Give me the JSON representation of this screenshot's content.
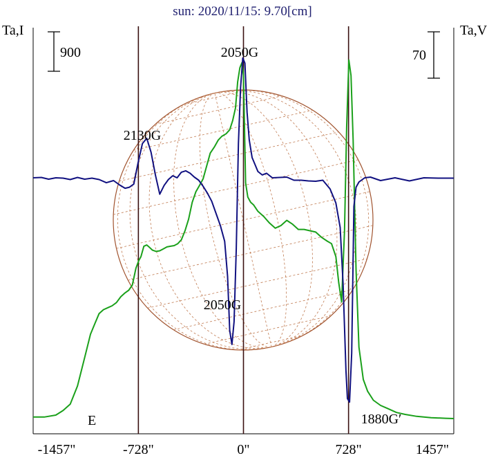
{
  "chart_data": {
    "type": "line",
    "title": "sun: 2020/11/15: 9.70[cm]",
    "ylabel_left": "Ta,I",
    "ylabel_right": "Ta,V",
    "scale_left": "900",
    "scale_right": "70",
    "x_ticks": [
      "-1457\"",
      "-728\"",
      "0\"",
      "728\"",
      "1457\""
    ],
    "x_tick_values": [
      -1457,
      -728,
      0,
      728,
      1457
    ],
    "xlim": [
      -1457,
      1457
    ],
    "vertical_lines": [
      -728,
      0,
      728
    ],
    "east_label": "E",
    "annotations": [
      {
        "text": "2130G",
        "x": -522,
        "y_series": "I"
      },
      {
        "text": "2050G",
        "x": -10,
        "y_series": "I"
      },
      {
        "text": "2050G",
        "x": -107,
        "y_series": "V"
      },
      {
        "text": "1880G′",
        "x": 728,
        "y_series": "V"
      }
    ],
    "series": [
      {
        "color": "#1aa01a",
        "x": [
          -1457,
          -1380,
          -1300,
          -1250,
          -1200,
          -1150,
          -1100,
          -1060,
          -1030,
          -1000,
          -970,
          -940,
          -910,
          -880,
          -850,
          -820,
          -795,
          -770,
          -745,
          -725,
          -710,
          -690,
          -670,
          -650,
          -630,
          -605,
          -580,
          -555,
          -530,
          -505,
          -480,
          -455,
          -430,
          -405,
          -380,
          -355,
          -330,
          -305,
          -280,
          -255,
          -230,
          -200,
          -175,
          -150,
          -120,
          -95,
          -75,
          -55,
          -40,
          -25,
          -10,
          0,
          15,
          30,
          50,
          70,
          100,
          140,
          180,
          220,
          260,
          300,
          340,
          380,
          420,
          460,
          500,
          540,
          580,
          610,
          640,
          660,
          680,
          700,
          715,
          730,
          745,
          760,
          780,
          800,
          830,
          860,
          900,
          950,
          1000,
          1060,
          1120,
          1200,
          1300,
          1400,
          1457
        ],
        "y": [
          60,
          60,
          75,
          110,
          160,
          300,
          520,
          700,
          780,
          860,
          890,
          905,
          920,
          945,
          990,
          1020,
          1040,
          1080,
          1210,
          1270,
          1300,
          1380,
          1390,
          1370,
          1350,
          1340,
          1345,
          1360,
          1375,
          1380,
          1385,
          1400,
          1430,
          1500,
          1590,
          1720,
          1800,
          1850,
          1900,
          2000,
          2100,
          2150,
          2200,
          2230,
          2250,
          2280,
          2350,
          2450,
          2650,
          2760,
          2800,
          2700,
          1870,
          1760,
          1720,
          1700,
          1650,
          1610,
          1560,
          1520,
          1540,
          1580,
          1550,
          1510,
          1510,
          1500,
          1490,
          1450,
          1420,
          1400,
          1300,
          1100,
          950,
          1500,
          2300,
          2820,
          2700,
          2200,
          1200,
          600,
          350,
          260,
          190,
          150,
          125,
          95,
          80,
          65,
          55,
          50,
          48
        ]
      },
      {
        "color": "#101080",
        "x": [
          -1457,
          -1400,
          -1350,
          -1300,
          -1250,
          -1200,
          -1150,
          -1100,
          -1050,
          -1000,
          -950,
          -900,
          -860,
          -820,
          -790,
          -760,
          -730,
          -700,
          -670,
          -640,
          -610,
          -580,
          -550,
          -520,
          -490,
          -460,
          -430,
          -400,
          -370,
          -340,
          -310,
          -280,
          -250,
          -220,
          -190,
          -160,
          -130,
          -110,
          -95,
          -80,
          -65,
          -50,
          -35,
          -20,
          -5,
          10,
          25,
          40,
          60,
          80,
          100,
          130,
          160,
          200,
          250,
          300,
          350,
          400,
          450,
          500,
          550,
          600,
          640,
          670,
          690,
          710,
          720,
          735,
          750,
          765,
          780,
          800,
          840,
          880,
          950,
          1050,
          1150,
          1250,
          1350,
          1457
        ],
        "y": [
          0.2,
          0.3,
          -0.2,
          0.2,
          0.1,
          -0.3,
          0.3,
          -0.2,
          0.1,
          -0.3,
          -1.2,
          -0.6,
          -1.8,
          -2.8,
          -2.5,
          -1.6,
          4.5,
          10.0,
          11.5,
          7.5,
          1.0,
          -4.5,
          -2.0,
          -0.3,
          0.8,
          0.2,
          1.8,
          2.2,
          1.5,
          0.4,
          -0.5,
          -2.2,
          -4.2,
          -6.5,
          -10.0,
          -13.5,
          -18.0,
          -28.0,
          -43.5,
          -47.5,
          -41.0,
          -20.0,
          10.0,
          26.0,
          34.5,
          33.0,
          19.0,
          11.0,
          6.0,
          4.0,
          2.0,
          1.0,
          1.5,
          0.2,
          0.3,
          0.4,
          -0.5,
          -0.5,
          -0.7,
          -0.8,
          -0.5,
          -3.0,
          -7.0,
          -14.0,
          -30.0,
          -55.0,
          -63.0,
          -64.0,
          -50.0,
          -8.0,
          -2.5,
          -1.0,
          0.2,
          0.4,
          -0.6,
          0.2,
          -0.7,
          0.2,
          0.1,
          0.1
        ]
      }
    ]
  }
}
